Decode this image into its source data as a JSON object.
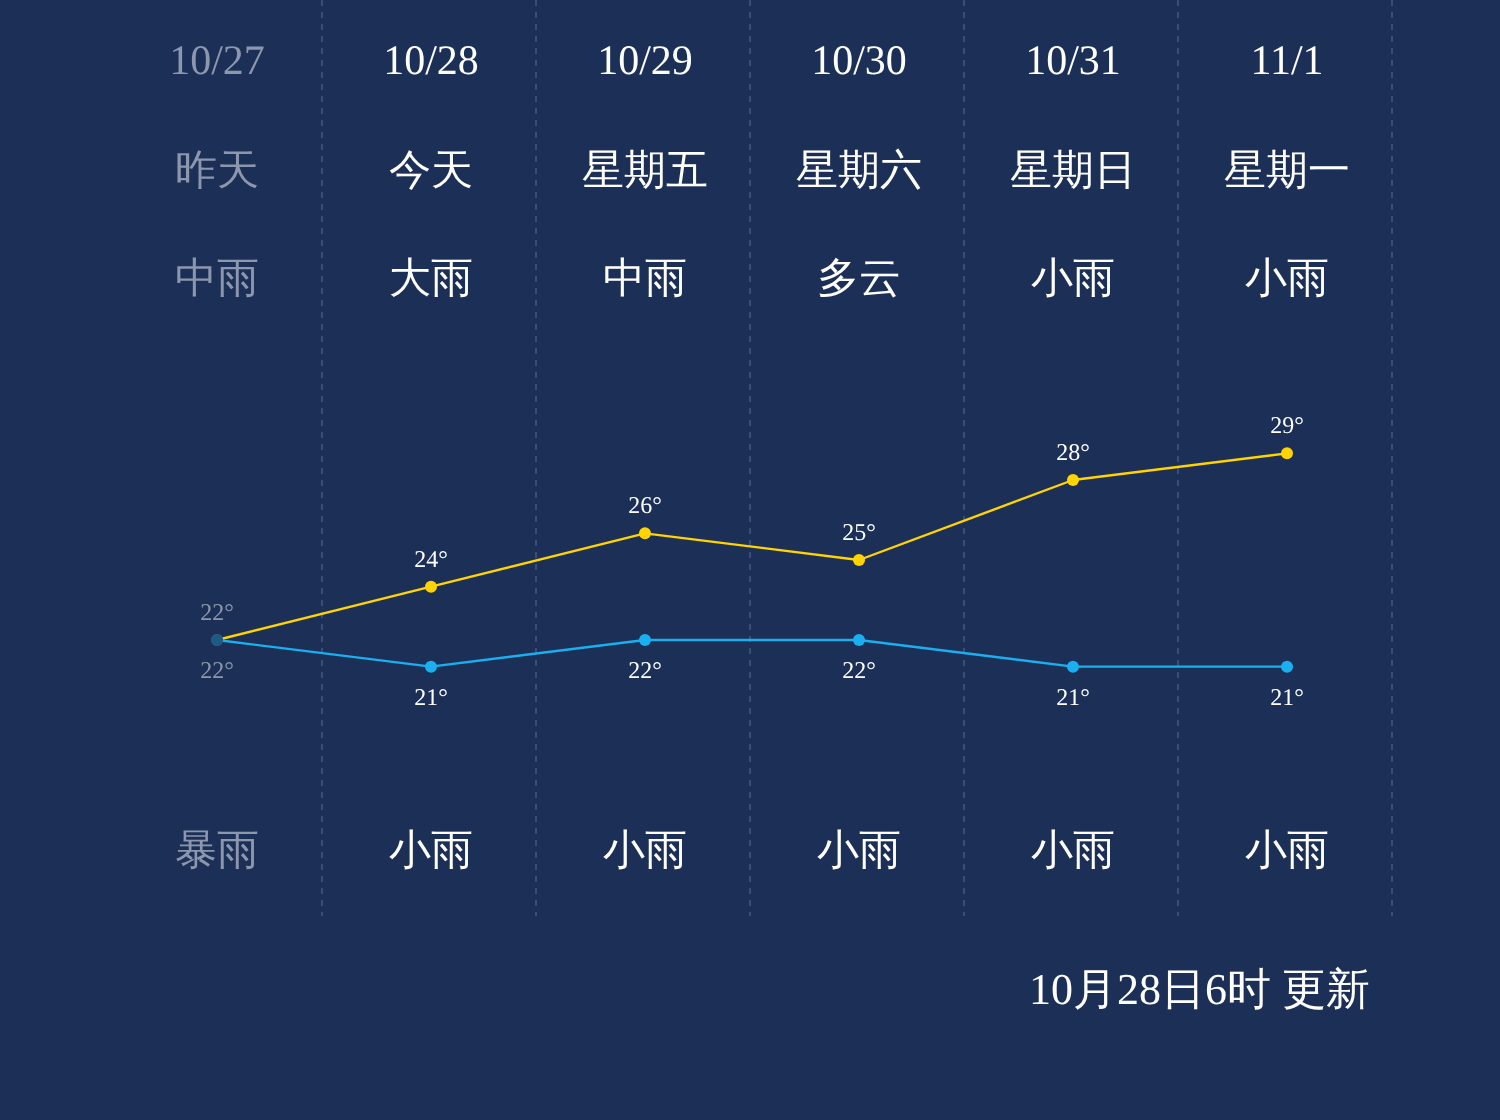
{
  "chart_data": {
    "type": "line",
    "categories": [
      "10/27",
      "10/28",
      "10/29",
      "10/30",
      "10/31",
      "11/1"
    ],
    "series": [
      {
        "color": "#ffd400",
        "colors": [
          "#6b6b55",
          "#ffd400",
          "#ffd400",
          "#ffd400",
          "#ffd400",
          "#ffd400"
        ],
        "values": [
          22,
          24,
          26,
          25,
          28,
          29
        ],
        "value_labels": [
          "22°",
          "24°",
          "26°",
          "25°",
          "28°",
          "29°"
        ]
      },
      {
        "color": "#1ab0f0",
        "colors": [
          "#1d5a85",
          "#1ab0f0",
          "#1ab0f0",
          "#1ab0f0",
          "#1ab0f0",
          "#1ab0f0"
        ],
        "values": [
          22,
          21,
          22,
          22,
          21,
          21
        ],
        "value_labels": [
          "22°",
          "21°",
          "22°",
          "22°",
          "21°",
          "21°"
        ]
      }
    ],
    "marker": "circle",
    "grid": "x",
    "annotations": [
      "昨天",
      "今天",
      "星期五",
      "星期六",
      "星期日",
      "星期一",
      "中雨",
      "大雨",
      "中雨",
      "多云",
      "小雨",
      "小雨",
      "暴雨",
      "小雨",
      "小雨",
      "小雨",
      "小雨",
      "小雨",
      "10月28日6时 更新"
    ]
  }
}
